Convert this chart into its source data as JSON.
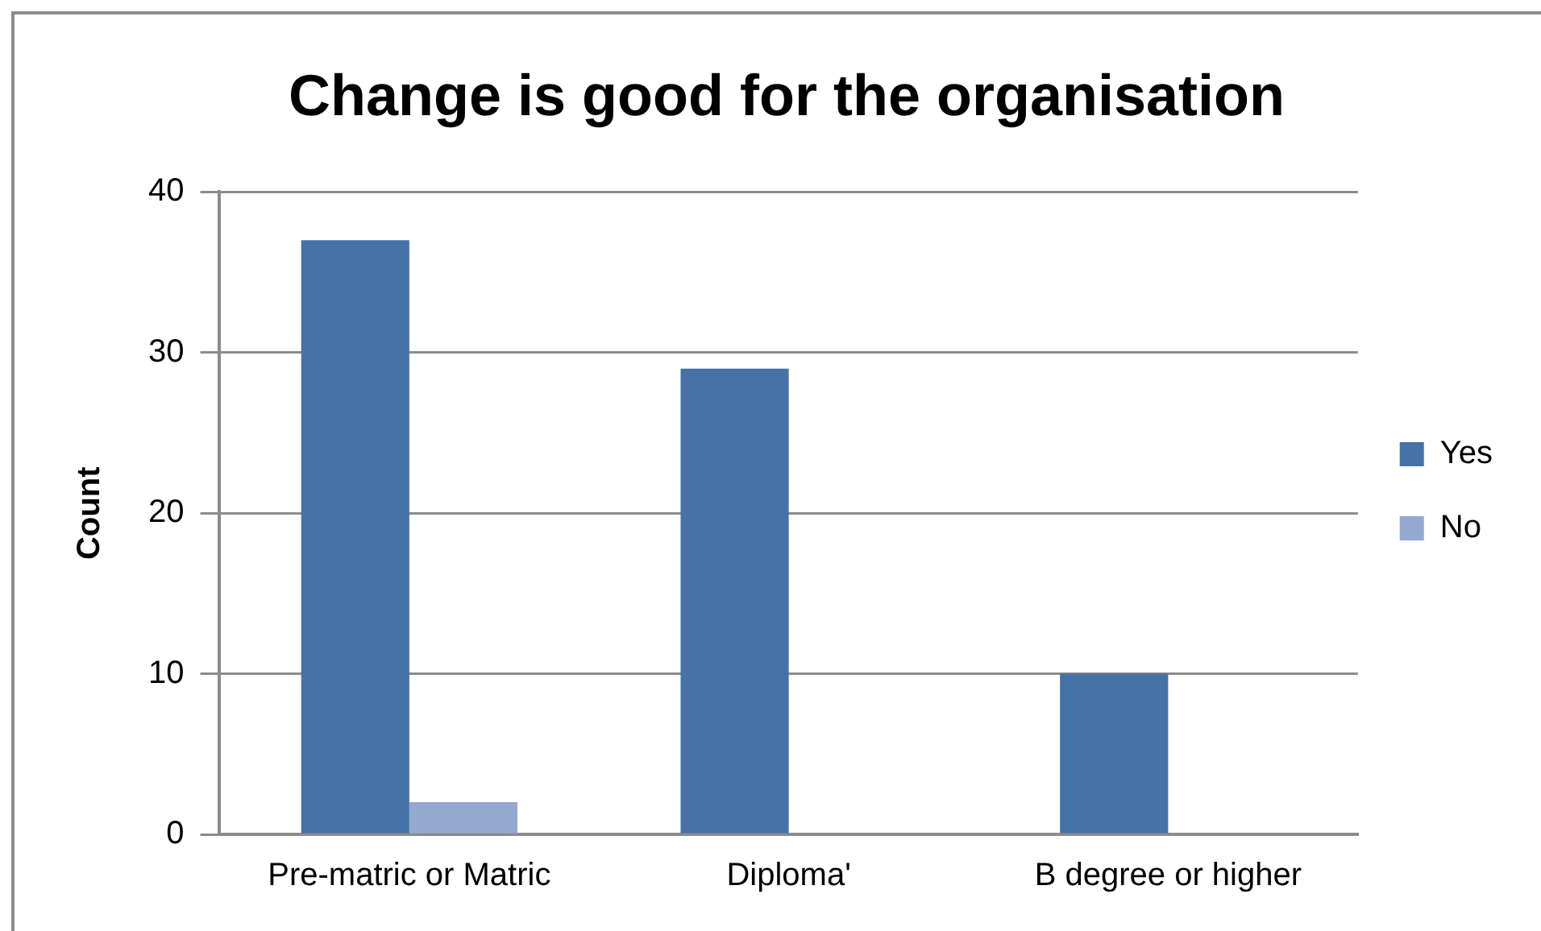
{
  "chart_data": {
    "type": "bar",
    "title": "Change is good for the organisation",
    "ylabel": "Count",
    "categories": [
      "Pre-matric or Matric",
      "Diploma'",
      "B degree or higher"
    ],
    "series": [
      {
        "name": "Yes",
        "color": "#4572a7",
        "values": [
          37,
          29,
          10
        ]
      },
      {
        "name": "No",
        "color": "#93a9cf",
        "values": [
          2,
          0,
          0
        ]
      }
    ],
    "ylim": [
      0,
      40
    ],
    "yticks": [
      0,
      10,
      20,
      30,
      40
    ],
    "grid": "y",
    "legend": "right"
  }
}
